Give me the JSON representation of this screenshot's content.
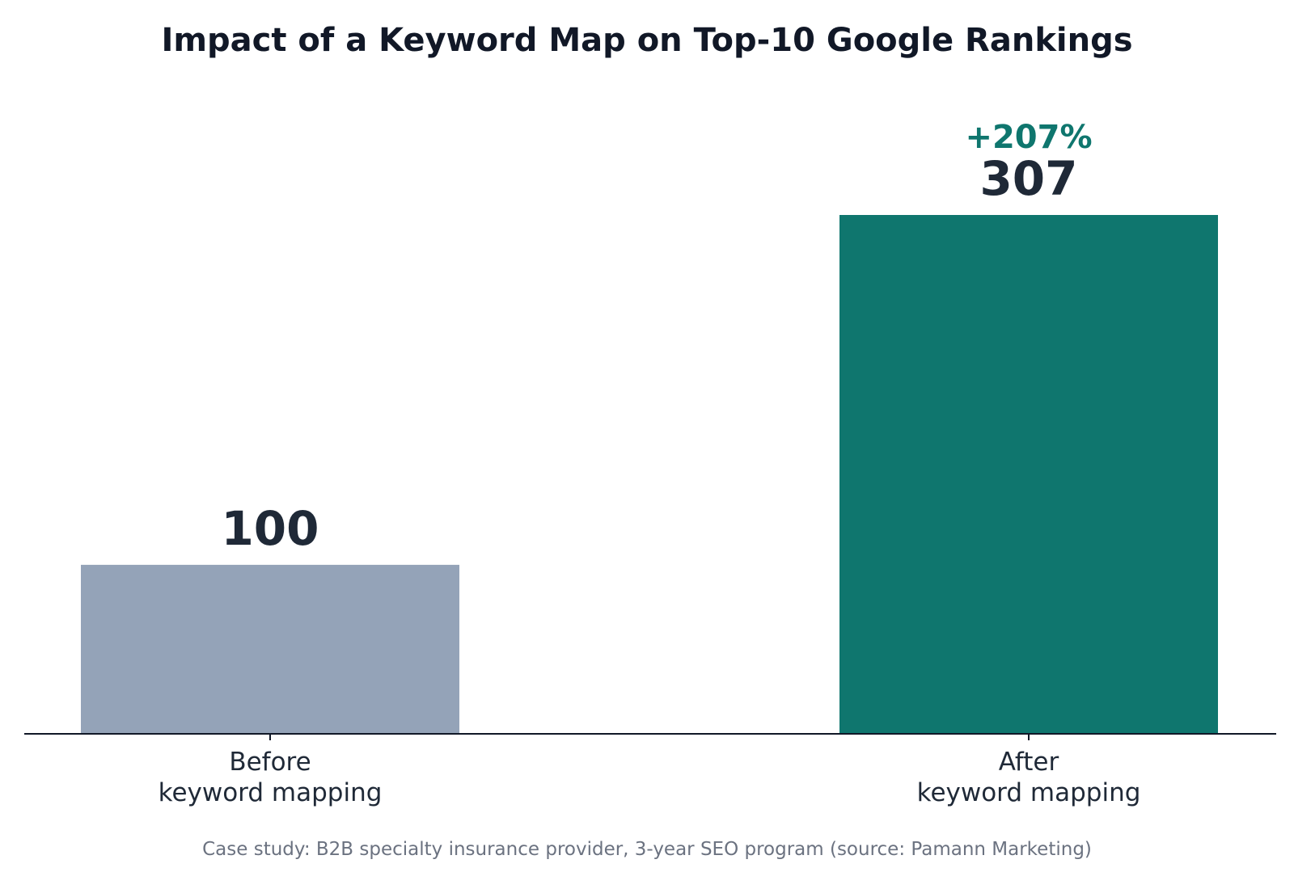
{
  "chart_data": {
    "type": "bar",
    "title": "Impact of a Keyword Map on Top-10 Google Rankings",
    "categories": [
      [
        "Before",
        "keyword mapping"
      ],
      [
        "After",
        "keyword mapping"
      ]
    ],
    "values": [
      100,
      307
    ],
    "value_labels": [
      "100",
      "307"
    ],
    "bar_colors": [
      "#94a3b8",
      "#0f766e"
    ],
    "annotation": {
      "text": "+207%",
      "category_index": 1,
      "color": "#0f766e"
    },
    "caption": "Case study: B2B specialty insurance provider, 3-year SEO program (source: Pamann Marketing)",
    "xlabel": "",
    "ylabel": "",
    "ylim": [
      0,
      307
    ],
    "y_axis_visible": false,
    "grid": false,
    "legend": "none"
  }
}
